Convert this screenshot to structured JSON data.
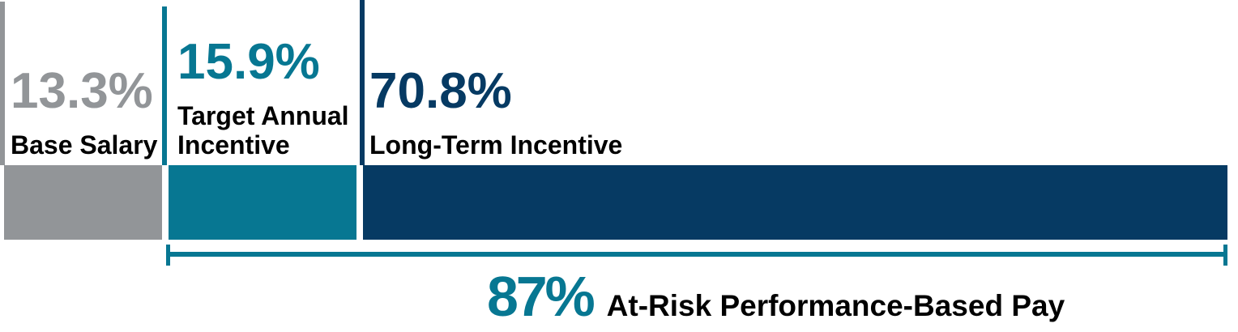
{
  "colors": {
    "gray": "#929598",
    "teal": "#077792",
    "navy": "#063A63",
    "text": "#000000",
    "background": "#FFFFFF"
  },
  "segments": [
    {
      "pct": "13.3%",
      "label": "Base Salary",
      "color": "#929598"
    },
    {
      "pct": "15.9%",
      "label": "Target Annual Incentive",
      "color": "#077792"
    },
    {
      "pct": "70.8%",
      "label": "Long-Term Incentive",
      "color": "#063A63"
    }
  ],
  "at_risk": {
    "pct": "87%",
    "label": "At-Risk Performance-Based Pay"
  },
  "chart_data": {
    "type": "bar",
    "subtype": "horizontal-stacked",
    "title": "",
    "categories": [
      "Base Salary",
      "Target Annual Incentive",
      "Long-Term Incentive"
    ],
    "values": [
      13.3,
      15.9,
      70.8
    ],
    "unit": "%",
    "segment_colors": [
      "#929598",
      "#077792",
      "#063A63"
    ],
    "xlim": [
      0,
      100
    ],
    "axes_visible": false,
    "grid": false,
    "legend_position": "none",
    "annotations": [
      {
        "value": 87,
        "unit": "%",
        "label": "At-Risk Performance-Based Pay",
        "style": "bracket-below",
        "spans_categories": [
          "Target Annual Incentive",
          "Long-Term Incentive"
        ]
      }
    ]
  }
}
